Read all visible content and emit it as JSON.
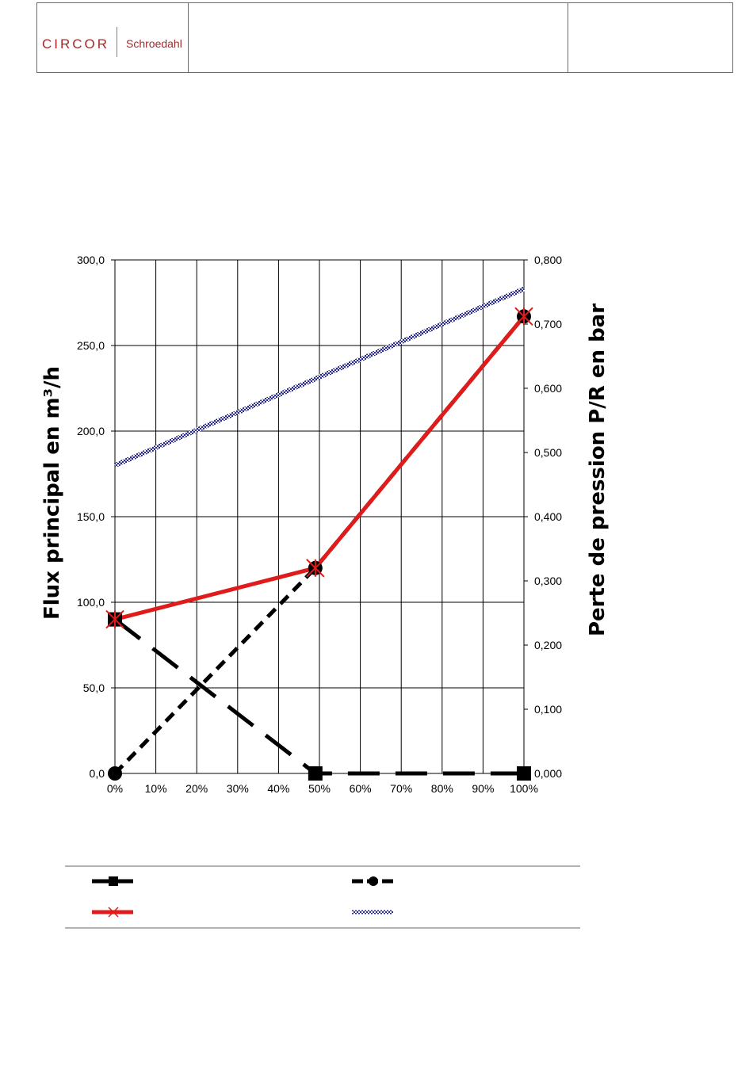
{
  "header": {
    "logo_brand": "CIRCOR",
    "logo_sub": "Schroedahl"
  },
  "chart_data": {
    "type": "line",
    "x": [
      0,
      10,
      20,
      30,
      40,
      50,
      60,
      70,
      80,
      90,
      100
    ],
    "x_ticks": [
      "0%",
      "10%",
      "20%",
      "30%",
      "40%",
      "50%",
      "60%",
      "70%",
      "80%",
      "90%",
      "100%"
    ],
    "xlim": [
      0,
      100
    ],
    "y_left_ticks": [
      "0,0",
      "50,0",
      "100,0",
      "150,0",
      "200,0",
      "250,0",
      "300,0"
    ],
    "y_right_ticks": [
      "0,000",
      "0,100",
      "0,200",
      "0,300",
      "0,400",
      "0,500",
      "0,600",
      "0,700",
      "0,800"
    ],
    "ylim_left": [
      0,
      300
    ],
    "ylim_right": [
      0,
      0.8
    ],
    "ylabel_left": "Flux principal en m³/h",
    "ylabel_right": "Perte de pression P/R en bar",
    "grid": true,
    "legend_position": "bottom",
    "series": [
      {
        "axis": "left",
        "color": "#000000",
        "style": "long-dash",
        "marker": "square",
        "x": [
          0,
          49,
          100
        ],
        "values": [
          90,
          0,
          0
        ]
      },
      {
        "axis": "left",
        "color": "#000000",
        "style": "short-dash",
        "marker": "circle",
        "x": [
          0,
          49,
          100
        ],
        "values": [
          0,
          120,
          267
        ]
      },
      {
        "axis": "left",
        "color": "#e01b1b",
        "style": "solid",
        "marker": "star",
        "x": [
          0,
          49,
          100
        ],
        "values": [
          90,
          120,
          267
        ]
      },
      {
        "axis": "right",
        "color": "#2a2a8a",
        "style": "hatched",
        "marker": "none",
        "x": [
          0,
          100
        ],
        "values": [
          0.48,
          0.755
        ]
      }
    ]
  }
}
